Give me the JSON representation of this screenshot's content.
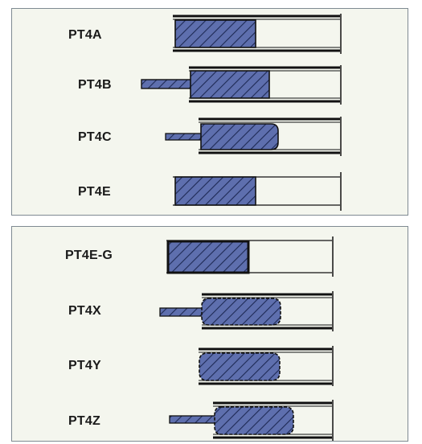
{
  "panels": [
    {
      "id": "top",
      "rows": [
        {
          "label": "PT4A"
        },
        {
          "label": "PT4B"
        },
        {
          "label": "PT4C"
        },
        {
          "label": "PT4E"
        }
      ]
    },
    {
      "id": "bottom",
      "rows": [
        {
          "label": "PT4E-G"
        },
        {
          "label": "PT4X"
        },
        {
          "label": "PT4Y"
        },
        {
          "label": "PT4Z"
        }
      ]
    }
  ],
  "colors": {
    "fill": "#5e6fae",
    "hatch": "#1e2a55",
    "outline": "#111111",
    "panel_bg": "#f4f6ee",
    "panel_border": "#7f8a92"
  }
}
